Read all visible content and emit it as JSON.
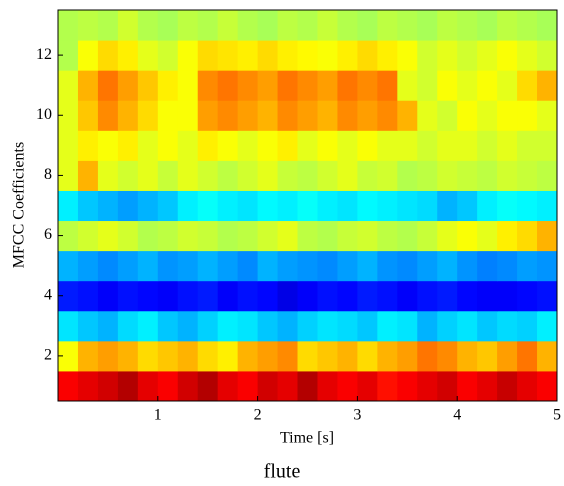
{
  "chart_data": {
    "type": "heatmap",
    "colormap": "jet",
    "xlabel": "Time [s]",
    "ylabel": "MFCC Coefficients",
    "caption": "flute",
    "xlim": [
      0,
      5
    ],
    "xticks": [
      1,
      2,
      3,
      4,
      5
    ],
    "ylim": [
      0.5,
      13.5
    ],
    "yticks": [
      2,
      4,
      6,
      8,
      10,
      12
    ],
    "x": [
      0.1,
      0.3,
      0.5,
      0.7,
      0.9,
      1.1,
      1.3,
      1.5,
      1.7,
      1.9,
      2.1,
      2.3,
      2.5,
      2.7,
      2.9,
      3.1,
      3.3,
      3.5,
      3.7,
      3.9,
      4.1,
      4.3,
      4.5,
      4.7,
      4.9
    ],
    "y": [
      1,
      2,
      3,
      4,
      5,
      6,
      7,
      8,
      9,
      10,
      11,
      12,
      13
    ],
    "values": [
      [
        0.88,
        0.9,
        0.92,
        0.95,
        0.9,
        0.88,
        0.92,
        0.95,
        0.9,
        0.88,
        0.92,
        0.9,
        0.95,
        0.9,
        0.88,
        0.9,
        0.86,
        0.88,
        0.9,
        0.92,
        0.88,
        0.9,
        0.93,
        0.9,
        0.88
      ],
      [
        0.62,
        0.7,
        0.72,
        0.7,
        0.66,
        0.68,
        0.7,
        0.66,
        0.64,
        0.7,
        0.72,
        0.74,
        0.66,
        0.68,
        0.7,
        0.66,
        0.7,
        0.72,
        0.76,
        0.74,
        0.7,
        0.68,
        0.72,
        0.76,
        0.7
      ],
      [
        0.35,
        0.32,
        0.3,
        0.34,
        0.36,
        0.32,
        0.3,
        0.33,
        0.36,
        0.35,
        0.32,
        0.3,
        0.33,
        0.35,
        0.34,
        0.32,
        0.36,
        0.35,
        0.3,
        0.33,
        0.35,
        0.32,
        0.34,
        0.33,
        0.36
      ],
      [
        0.15,
        0.14,
        0.12,
        0.14,
        0.13,
        0.12,
        0.14,
        0.15,
        0.12,
        0.14,
        0.13,
        0.1,
        0.12,
        0.14,
        0.13,
        0.15,
        0.14,
        0.12,
        0.14,
        0.15,
        0.13,
        0.12,
        0.12,
        0.13,
        0.14
      ],
      [
        0.3,
        0.28,
        0.26,
        0.28,
        0.3,
        0.27,
        0.28,
        0.3,
        0.28,
        0.26,
        0.3,
        0.28,
        0.27,
        0.26,
        0.28,
        0.3,
        0.27,
        0.26,
        0.28,
        0.3,
        0.27,
        0.25,
        0.26,
        0.28,
        0.27
      ],
      [
        0.56,
        0.58,
        0.6,
        0.58,
        0.55,
        0.56,
        0.58,
        0.57,
        0.55,
        0.56,
        0.58,
        0.6,
        0.56,
        0.55,
        0.57,
        0.58,
        0.56,
        0.55,
        0.57,
        0.6,
        0.62,
        0.6,
        0.64,
        0.66,
        0.7
      ],
      [
        0.36,
        0.32,
        0.3,
        0.28,
        0.3,
        0.32,
        0.36,
        0.38,
        0.36,
        0.35,
        0.37,
        0.36,
        0.38,
        0.36,
        0.35,
        0.37,
        0.36,
        0.35,
        0.34,
        0.3,
        0.32,
        0.36,
        0.38,
        0.37,
        0.36
      ],
      [
        0.6,
        0.7,
        0.6,
        0.58,
        0.6,
        0.57,
        0.6,
        0.58,
        0.56,
        0.58,
        0.6,
        0.57,
        0.56,
        0.58,
        0.6,
        0.57,
        0.58,
        0.55,
        0.56,
        0.58,
        0.57,
        0.56,
        0.58,
        0.57,
        0.56
      ],
      [
        0.6,
        0.64,
        0.62,
        0.64,
        0.6,
        0.62,
        0.6,
        0.64,
        0.62,
        0.6,
        0.62,
        0.64,
        0.6,
        0.62,
        0.6,
        0.62,
        0.6,
        0.6,
        0.58,
        0.6,
        0.6,
        0.58,
        0.6,
        0.58,
        0.58
      ],
      [
        0.6,
        0.68,
        0.74,
        0.7,
        0.66,
        0.62,
        0.62,
        0.72,
        0.74,
        0.72,
        0.7,
        0.74,
        0.72,
        0.7,
        0.74,
        0.72,
        0.74,
        0.7,
        0.6,
        0.58,
        0.62,
        0.6,
        0.62,
        0.62,
        0.6
      ],
      [
        0.6,
        0.7,
        0.76,
        0.72,
        0.68,
        0.64,
        0.62,
        0.74,
        0.76,
        0.74,
        0.72,
        0.76,
        0.74,
        0.72,
        0.76,
        0.74,
        0.76,
        0.6,
        0.58,
        0.62,
        0.6,
        0.62,
        0.6,
        0.66,
        0.7
      ],
      [
        0.55,
        0.62,
        0.66,
        0.64,
        0.6,
        0.58,
        0.62,
        0.66,
        0.65,
        0.64,
        0.66,
        0.64,
        0.63,
        0.62,
        0.64,
        0.66,
        0.64,
        0.62,
        0.58,
        0.6,
        0.58,
        0.6,
        0.62,
        0.6,
        0.58
      ],
      [
        0.55,
        0.56,
        0.55,
        0.58,
        0.55,
        0.54,
        0.56,
        0.55,
        0.57,
        0.55,
        0.54,
        0.56,
        0.55,
        0.57,
        0.55,
        0.54,
        0.56,
        0.55,
        0.54,
        0.56,
        0.55,
        0.54,
        0.56,
        0.55,
        0.54
      ]
    ]
  }
}
